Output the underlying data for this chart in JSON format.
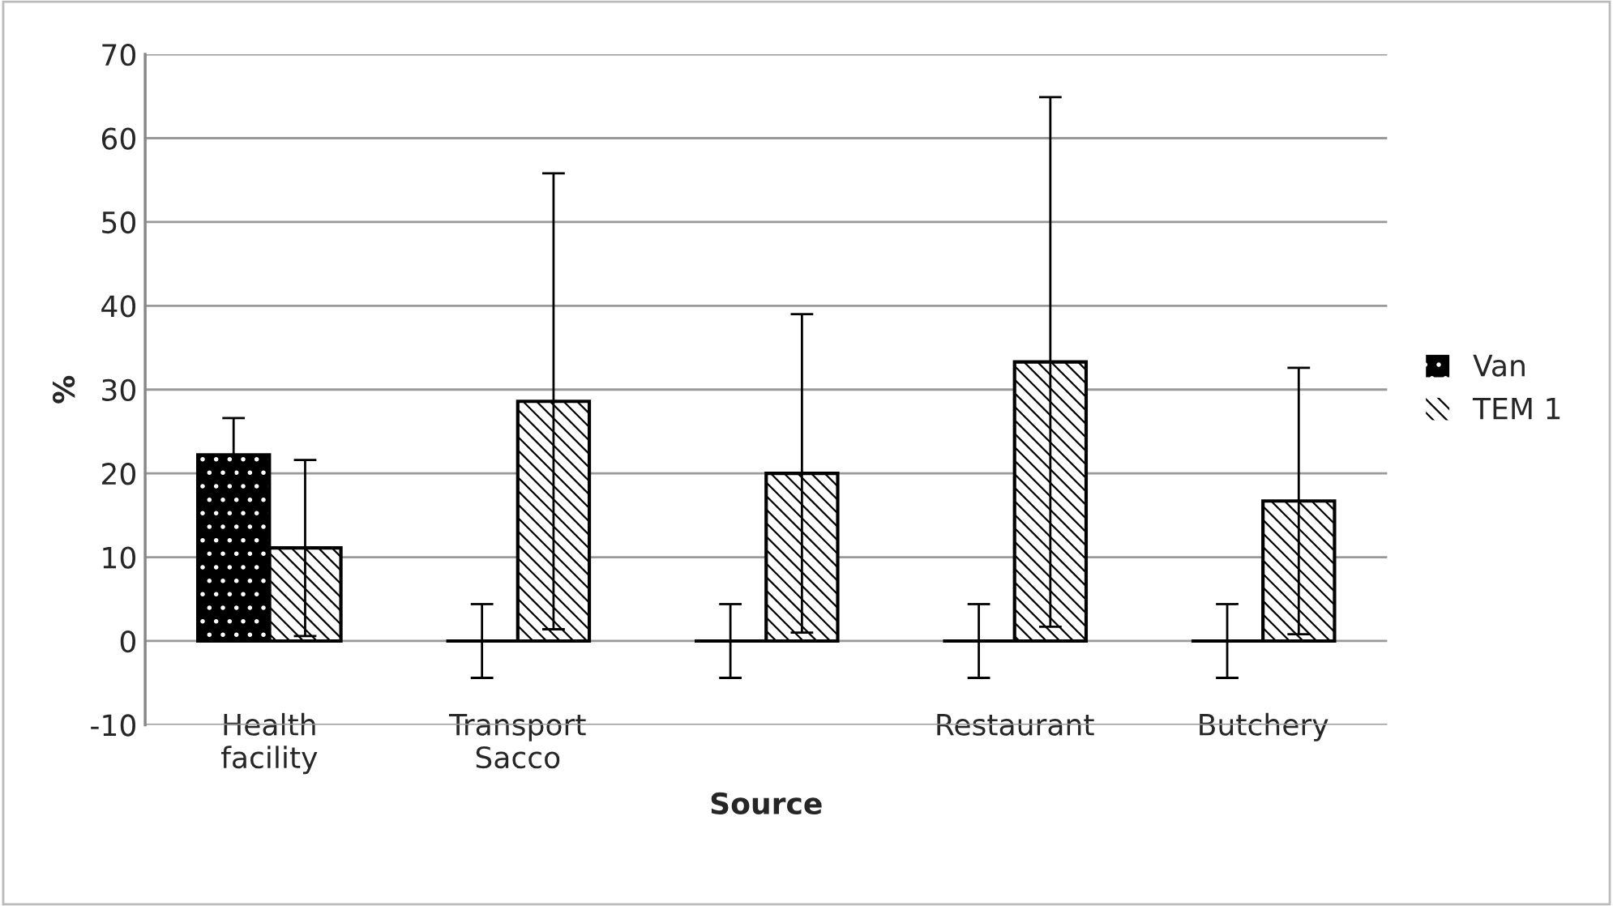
{
  "chart_data": {
    "type": "bar",
    "categories": [
      "Health\nfacility",
      "Transport\nSacco",
      null,
      "Restaurant",
      "Butchery"
    ],
    "series": [
      {
        "name": "Van",
        "color": "#000000",
        "values": [
          22.2,
          0,
          0,
          0,
          0
        ],
        "errors": [
          4.4,
          4.4,
          4.4,
          4.4,
          4.4
        ]
      },
      {
        "name": "TEM 1",
        "color": "#ffffff",
        "values": [
          11.1,
          28.6,
          20,
          33.3,
          16.7
        ],
        "errors": [
          10.5,
          27.2,
          19,
          31.6,
          15.9
        ]
      }
    ],
    "xlabel": "Source",
    "ylabel": "%",
    "ylim": [
      -10,
      70
    ],
    "yticks": [
      -10,
      0,
      10,
      20,
      30,
      40,
      50,
      60,
      70
    ],
    "grid": "y",
    "legend": "right"
  }
}
